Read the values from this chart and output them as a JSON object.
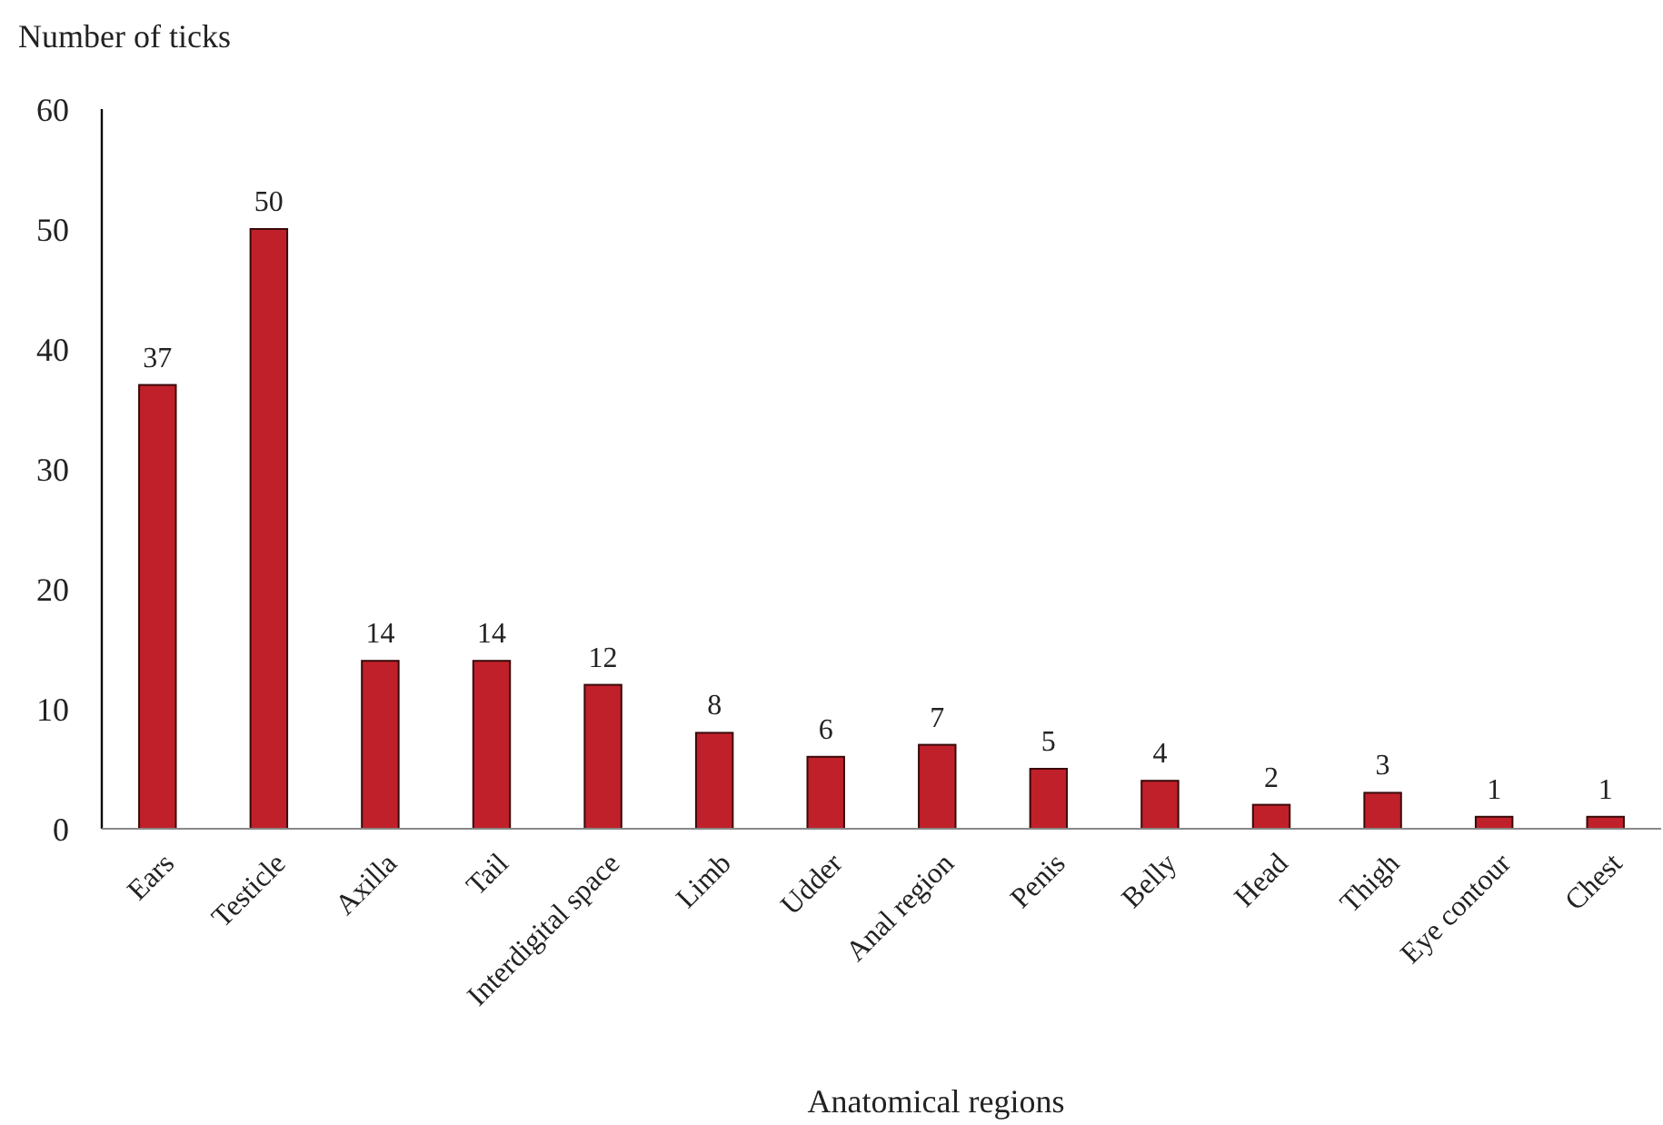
{
  "chart_data": {
    "type": "bar",
    "xlabel": "Anatomical regions",
    "ylabel": "Number of ticks",
    "categories": [
      "Ears",
      "Testicle",
      "Axilla",
      "Tail",
      "Interdigital space",
      "Limb",
      "Udder",
      "Anal region",
      "Penis",
      "Belly",
      "Head",
      "Thigh",
      "Eye contour",
      "Chest"
    ],
    "values": [
      37,
      50,
      14,
      14,
      12,
      8,
      6,
      7,
      5,
      4,
      2,
      3,
      1,
      1
    ],
    "color": "#c0202a",
    "ylim": [
      0,
      60
    ],
    "yticks": [
      0,
      10,
      20,
      30,
      40,
      50,
      60
    ],
    "data_labels": true,
    "grid": false
  }
}
